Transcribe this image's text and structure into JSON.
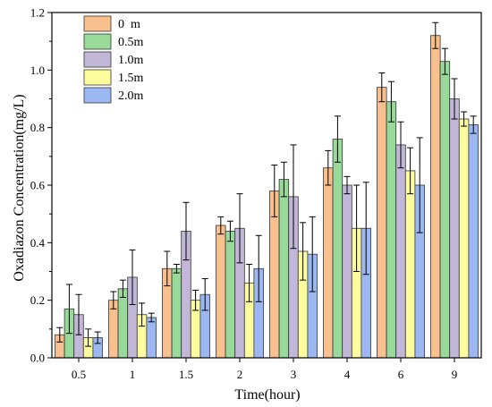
{
  "chart_data": {
    "type": "bar",
    "title": "",
    "xlabel": "Time(hour)",
    "ylabel": "Oxadiazon Concentration(mg/L)",
    "ylim": [
      0,
      1.2
    ],
    "yticks": [
      "0.0",
      "0.2",
      "0.4",
      "0.6",
      "0.8",
      "1.0",
      "1.2"
    ],
    "categories": [
      "0.5",
      "1",
      "1.5",
      "2",
      "3",
      "4",
      "6",
      "9"
    ],
    "legend_position": "top-left",
    "error_bars": true,
    "series": [
      {
        "name": "0  m",
        "color": "#f9c08f",
        "values": [
          0.08,
          0.2,
          0.31,
          0.46,
          0.58,
          0.66,
          0.94,
          1.12
        ],
        "errors": [
          0.025,
          0.03,
          0.06,
          0.03,
          0.09,
          0.06,
          0.05,
          0.045
        ]
      },
      {
        "name": "0.5m",
        "color": "#99d99a",
        "values": [
          0.17,
          0.24,
          0.31,
          0.44,
          0.62,
          0.76,
          0.89,
          1.03
        ],
        "errors": [
          0.085,
          0.03,
          0.015,
          0.035,
          0.06,
          0.08,
          0.07,
          0.045
        ]
      },
      {
        "name": "1.0m",
        "color": "#c2b7d9",
        "values": [
          0.15,
          0.28,
          0.44,
          0.45,
          0.56,
          0.6,
          0.74,
          0.9
        ],
        "errors": [
          0.07,
          0.095,
          0.1,
          0.12,
          0.18,
          0.03,
          0.08,
          0.07
        ]
      },
      {
        "name": "1.5m",
        "color": "#fdfd9e",
        "values": [
          0.07,
          0.15,
          0.2,
          0.26,
          0.37,
          0.45,
          0.65,
          0.83
        ],
        "errors": [
          0.03,
          0.04,
          0.035,
          0.065,
          0.1,
          0.15,
          0.08,
          0.025
        ]
      },
      {
        "name": "2.0m",
        "color": "#9bb8f2",
        "values": [
          0.07,
          0.14,
          0.22,
          0.31,
          0.36,
          0.45,
          0.6,
          0.81
        ],
        "errors": [
          0.02,
          0.015,
          0.055,
          0.115,
          0.13,
          0.16,
          0.165,
          0.03
        ]
      }
    ]
  }
}
